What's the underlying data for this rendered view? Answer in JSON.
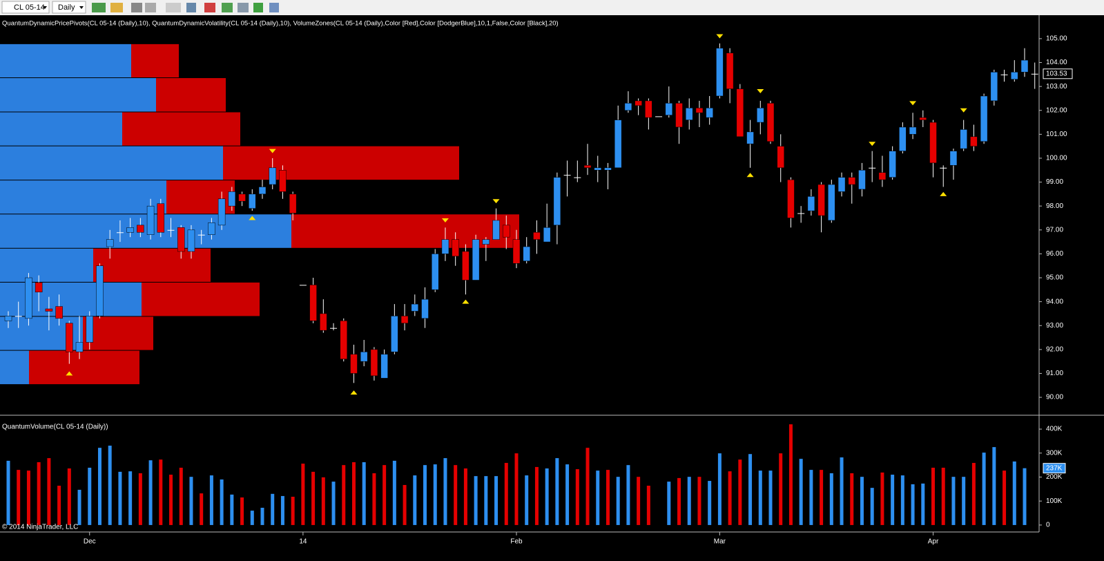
{
  "toolbar": {
    "instrument": "CL 05-14",
    "period": "Daily"
  },
  "footer": {
    "copyright": "© 2014 NinjaTrader, LLC"
  },
  "chart_data": [
    {
      "type": "candlestick",
      "title": "QuantumDynamicPricePivots(CL 05-14 (Daily),10), QuantumDynamicVolatility(CL 05-14 (Daily),10), VolumeZones(CL 05-14 (Daily),Color [Red],Color [DodgerBlue],10,1,False,Color [Black],20)",
      "categories": [
        null,
        null,
        null,
        null,
        null,
        null,
        null,
        null,
        "Dec",
        null,
        null,
        null,
        null,
        null,
        null,
        null,
        null,
        null,
        null,
        null,
        null,
        null,
        null,
        null,
        null,
        null,
        null,
        null,
        null,
        "14",
        null,
        null,
        null,
        null,
        null,
        null,
        null,
        null,
        null,
        null,
        null,
        null,
        null,
        null,
        null,
        null,
        null,
        null,
        null,
        null,
        "Feb",
        null,
        null,
        null,
        null,
        null,
        null,
        null,
        null,
        null,
        null,
        null,
        null,
        null,
        null,
        null,
        null,
        null,
        null,
        null,
        "Mar",
        null,
        null,
        null,
        null,
        null,
        null,
        null,
        null,
        null,
        null,
        null,
        null,
        null,
        null,
        null,
        null,
        null,
        null,
        null,
        null,
        "Apr",
        null,
        null,
        null,
        null,
        null,
        null,
        null,
        null,
        null,
        null
      ],
      "open": [
        93.2,
        93.4,
        93.3,
        94.8,
        93.7,
        93.8,
        93.1,
        91.9,
        92.3,
        93.4,
        96.3,
        96.9,
        96.9,
        97.2,
        96.8,
        98.1,
        97.0,
        97.1,
        96.1,
        96.8,
        96.8,
        97.2,
        98.0,
        98.5,
        97.9,
        98.5,
        98.9,
        99.5,
        98.5,
        94.7,
        94.7,
        93.5,
        92.9,
        93.2,
        91.8,
        91.5,
        92.0,
        90.8,
        91.9,
        93.4,
        93.6,
        93.3,
        94.5,
        96.0,
        96.6,
        96.1,
        94.9,
        96.4,
        96.6,
        97.2,
        96.6,
        95.7,
        96.9,
        96.5,
        97.2,
        99.3,
        99.2,
        99.7,
        99.5,
        99.5,
        99.6,
        102.0,
        102.4,
        102.4,
        101.75,
        101.8,
        102.3,
        101.6,
        102.1,
        101.7,
        102.6,
        104.4,
        102.9,
        100.6,
        101.5,
        102.3,
        100.5,
        99.1,
        97.7,
        97.8,
        98.9,
        97.4,
        98.6,
        99.2,
        98.7,
        99.6,
        99.4,
        99.2,
        100.3,
        101.0,
        101.7,
        101.5,
        99.6,
        99.7,
        100.4,
        100.9,
        100.7,
        102.4,
        103.5,
        103.3,
        103.6,
        103.53
      ],
      "high": [
        93.6,
        94.0,
        95.2,
        95.1,
        94.2,
        94.3,
        93.2,
        93.4,
        93.6,
        95.6,
        97.0,
        97.4,
        97.5,
        97.5,
        98.3,
        98.3,
        97.5,
        97.2,
        97.2,
        97.0,
        97.5,
        98.6,
        98.8,
        98.6,
        98.7,
        99.1,
        100.0,
        99.7,
        98.6,
        94.7,
        95.0,
        94.1,
        93.1,
        93.3,
        92.2,
        92.4,
        92.1,
        92.0,
        93.9,
        93.9,
        94.3,
        94.6,
        96.2,
        97.1,
        96.9,
        96.4,
        96.8,
        96.7,
        97.9,
        97.6,
        97.0,
        96.7,
        97.4,
        98.1,
        99.4,
        99.9,
        99.9,
        100.6,
        100.1,
        99.8,
        102.2,
        102.8,
        102.5,
        102.5,
        101.75,
        103.0,
        102.4,
        102.5,
        102.4,
        102.6,
        104.8,
        104.6,
        103.1,
        101.6,
        102.4,
        102.4,
        101.0,
        99.2,
        98.0,
        98.7,
        99.0,
        99.1,
        99.4,
        99.4,
        99.8,
        100.3,
        100.1,
        100.5,
        101.5,
        101.9,
        102.0,
        101.6,
        99.7,
        100.4,
        101.6,
        101.4,
        102.7,
        103.7,
        103.7,
        104.1,
        104.6,
        104.0
      ],
      "low": [
        92.9,
        92.9,
        93.0,
        93.6,
        92.8,
        93.0,
        91.4,
        91.6,
        92.0,
        93.3,
        95.8,
        96.5,
        96.7,
        96.7,
        96.6,
        96.7,
        96.7,
        95.8,
        95.8,
        96.4,
        96.6,
        97.0,
        97.8,
        98.0,
        97.8,
        98.3,
        98.7,
        98.3,
        97.4,
        94.7,
        93.1,
        92.7,
        92.8,
        91.5,
        90.6,
        91.3,
        90.7,
        90.8,
        91.8,
        92.8,
        93.4,
        92.9,
        94.4,
        95.7,
        95.5,
        94.3,
        94.9,
        95.7,
        96.6,
        96.2,
        95.4,
        95.6,
        96.0,
        96.5,
        96.4,
        98.4,
        99.0,
        99.3,
        99.0,
        98.7,
        99.6,
        101.9,
        101.8,
        101.2,
        101.75,
        101.7,
        100.6,
        101.2,
        101.3,
        101.4,
        102.5,
        102.3,
        100.9,
        99.6,
        101.0,
        100.6,
        99.0,
        97.1,
        97.3,
        97.6,
        96.9,
        97.3,
        98.4,
        98.1,
        98.4,
        99.0,
        98.8,
        99.1,
        100.2,
        100.8,
        101.3,
        99.2,
        98.8,
        99.1,
        100.3,
        100.3,
        100.6,
        102.2,
        103.2,
        103.2,
        103.4,
        102.9
      ],
      "close": [
        93.4,
        93.4,
        95.0,
        94.4,
        93.6,
        93.3,
        91.9,
        92.3,
        93.4,
        95.5,
        96.6,
        96.9,
        97.1,
        96.9,
        98.0,
        96.9,
        97.0,
        96.1,
        97.0,
        96.8,
        97.3,
        98.3,
        98.6,
        98.2,
        98.5,
        98.8,
        99.6,
        98.6,
        97.7,
        94.7,
        93.2,
        92.8,
        92.9,
        91.6,
        91.0,
        91.9,
        90.9,
        91.8,
        93.4,
        93.1,
        93.9,
        94.1,
        96.0,
        96.6,
        95.9,
        94.9,
        96.6,
        96.6,
        97.4,
        96.7,
        95.6,
        96.3,
        96.6,
        97.1,
        99.2,
        99.3,
        99.2,
        99.6,
        99.6,
        99.6,
        101.6,
        102.3,
        102.2,
        101.7,
        101.75,
        102.3,
        101.3,
        102.1,
        101.9,
        102.1,
        104.6,
        102.9,
        100.9,
        101.1,
        102.1,
        100.7,
        99.6,
        97.5,
        97.7,
        98.4,
        97.6,
        98.9,
        99.2,
        98.9,
        99.5,
        99.6,
        99.1,
        100.3,
        101.3,
        101.3,
        101.6,
        99.8,
        99.6,
        100.3,
        101.2,
        100.5,
        102.6,
        103.6,
        103.5,
        103.6,
        104.1,
        103.53
      ],
      "up_color": "#2d8ff0",
      "down_color": "#e50000",
      "unchanged_color": "#ffffff",
      "ylim": [
        89.28,
        105.98
      ],
      "yticks": [
        {
          "value": 90,
          "label": "90.00"
        },
        {
          "value": 91,
          "label": "91.00"
        },
        {
          "value": 92,
          "label": "92.00"
        },
        {
          "value": 93,
          "label": "93.00"
        },
        {
          "value": 94,
          "label": "94.00"
        },
        {
          "value": 95,
          "label": "95.00"
        },
        {
          "value": 96,
          "label": "96.00"
        },
        {
          "value": 97,
          "label": "97.00"
        },
        {
          "value": 98,
          "label": "98.00"
        },
        {
          "value": 99,
          "label": "99.00"
        },
        {
          "value": 100,
          "label": "100.00"
        },
        {
          "value": 101,
          "label": "101.00"
        },
        {
          "value": 102,
          "label": "102.00"
        },
        {
          "value": 103,
          "label": "103.00"
        },
        {
          "value": 104,
          "label": "104.00"
        },
        {
          "value": 105,
          "label": "105.00"
        }
      ],
      "last_price": {
        "value": 103.53,
        "label": "103.53"
      },
      "volume_zones": {
        "bins": [
          90.52,
          91.95,
          93.37,
          94.8,
          96.22,
          97.65,
          99.07,
          100.5,
          101.92,
          103.35,
          104.77
        ],
        "up": [
          42,
          120,
          205,
          135,
          422,
          241,
          323,
          177,
          226,
          190
        ],
        "down": [
          160,
          102,
          171,
          170,
          330,
          99,
          342,
          171,
          101,
          69
        ],
        "xlim": [
          0,
          1505
        ],
        "up_color": "#2c7fde",
        "down_color": "#cc0000"
      },
      "pivot_highs": {
        "x": [
          26,
          43,
          48,
          70,
          74,
          85,
          89,
          94
        ],
        "values": [
          100.3,
          97.4,
          98.2,
          105.1,
          102.8,
          100.6,
          102.3,
          102.0
        ]
      },
      "pivot_lows": {
        "x": [
          6,
          24,
          34,
          45,
          73,
          92
        ],
        "values": [
          91.0,
          97.5,
          90.2,
          94.0,
          99.3,
          98.5
        ]
      },
      "pivot_color": "#ffe000"
    },
    {
      "type": "bar",
      "title": "QuantumVolume(CL 05-14 (Daily))",
      "values": [
        268,
        230,
        227,
        262,
        279,
        164,
        236,
        147,
        239,
        322,
        331,
        222,
        224,
        216,
        270,
        273,
        210,
        239,
        201,
        132,
        207,
        190,
        127,
        115,
        60,
        72,
        130,
        121,
        118,
        256,
        222,
        199,
        181,
        250,
        262,
        262,
        216,
        250,
        268,
        167,
        207,
        250,
        253,
        279,
        250,
        236,
        204,
        204,
        204,
        259,
        299,
        207,
        242,
        236,
        279,
        253,
        233,
        322,
        227,
        230,
        201,
        250,
        201,
        164,
        null,
        181,
        196,
        201,
        201,
        184,
        299,
        224,
        273,
        296,
        227,
        227,
        299,
        420,
        276,
        230,
        230,
        216,
        282,
        216,
        201,
        155,
        219,
        210,
        207,
        170,
        173,
        239,
        239,
        201,
        201,
        259,
        302,
        325,
        227,
        265,
        237,
        null
      ],
      "colors": [
        "#2d8ff0",
        "#e50000",
        "#e50000",
        "#e50000",
        "#e50000",
        "#e50000",
        "#e50000",
        "#2d8ff0",
        "#2d8ff0",
        "#2d8ff0",
        "#2d8ff0",
        "#2d8ff0",
        "#2d8ff0",
        "#e50000",
        "#2d8ff0",
        "#e50000",
        "#e50000",
        "#e50000",
        "#2d8ff0",
        "#e50000",
        "#2d8ff0",
        "#2d8ff0",
        "#2d8ff0",
        "#e50000",
        "#2d8ff0",
        "#2d8ff0",
        "#2d8ff0",
        "#2d8ff0",
        "#e50000",
        "#e50000",
        "#e50000",
        "#e50000",
        "#2d8ff0",
        "#e50000",
        "#e50000",
        "#2d8ff0",
        "#e50000",
        "#e50000",
        "#2d8ff0",
        "#e50000",
        "#2d8ff0",
        "#2d8ff0",
        "#2d8ff0",
        "#2d8ff0",
        "#e50000",
        "#e50000",
        "#2d8ff0",
        "#2d8ff0",
        "#2d8ff0",
        "#e50000",
        "#e50000",
        "#2d8ff0",
        "#e50000",
        "#2d8ff0",
        "#2d8ff0",
        "#2d8ff0",
        "#e50000",
        "#e50000",
        "#2d8ff0",
        "#e50000",
        "#2d8ff0",
        "#2d8ff0",
        "#e50000",
        "#e50000",
        null,
        "#2d8ff0",
        "#e50000",
        "#2d8ff0",
        "#e50000",
        "#2d8ff0",
        "#2d8ff0",
        "#e50000",
        "#e50000",
        "#2d8ff0",
        "#2d8ff0",
        "#2d8ff0",
        "#e50000",
        "#e50000",
        "#2d8ff0",
        "#2d8ff0",
        "#e50000",
        "#2d8ff0",
        "#2d8ff0",
        "#e50000",
        "#2d8ff0",
        "#2d8ff0",
        "#e50000",
        "#2d8ff0",
        "#2d8ff0",
        "#2d8ff0",
        "#2d8ff0",
        "#e50000",
        "#e50000",
        "#2d8ff0",
        "#2d8ff0",
        "#e50000",
        "#2d8ff0",
        "#2d8ff0",
        "#e50000",
        "#2d8ff0",
        "#2d8ff0",
        null
      ],
      "ylim": [
        -29,
        455
      ],
      "yticks": [
        0,
        {
          "value": 100,
          "label": "100K"
        },
        {
          "value": 200,
          "label": "200K"
        },
        {
          "value": 300,
          "label": "300K"
        },
        {
          "value": 400,
          "label": "400K"
        }
      ],
      "last_value": {
        "value": 237,
        "label": "237K"
      }
    }
  ]
}
